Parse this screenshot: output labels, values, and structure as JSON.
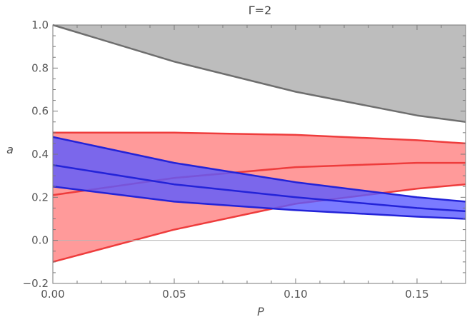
{
  "chart_data": {
    "type": "area",
    "title": "Γ=2",
    "xlabel": "P",
    "ylabel": "a",
    "xlim": [
      0,
      0.17
    ],
    "ylim": [
      -0.2,
      1.0
    ],
    "x_ticks": [
      0,
      0.05,
      0.1,
      0.15
    ],
    "x_tick_labels": [
      "0.00",
      "0.05",
      "0.10",
      "0.15"
    ],
    "y_ticks": [
      -0.2,
      0,
      0.2,
      0.4,
      0.6,
      0.8,
      1.0
    ],
    "y_tick_labels": [
      "−0.2",
      "0.0",
      "0.2",
      "0.4",
      "0.6",
      "0.8",
      "1.0"
    ],
    "grid": false,
    "series": [
      {
        "kind": "band",
        "fill": "#bdbdbd",
        "stroke": "#6e6e6e",
        "lower": {
          "x": [
            0,
            0.05,
            0.1,
            0.15,
            0.17
          ],
          "y": [
            1.0,
            0.83,
            0.69,
            0.58,
            0.55
          ]
        },
        "upper": {
          "x": [
            0,
            0.17
          ],
          "y": [
            1.0,
            1.0
          ]
        }
      },
      {
        "kind": "band",
        "fill": "#ff9a9a",
        "stroke": "#ee3c3c",
        "lower": {
          "x": [
            0,
            0.05,
            0.1,
            0.15,
            0.17
          ],
          "y": [
            -0.1,
            0.05,
            0.17,
            0.24,
            0.26
          ]
        },
        "upper": {
          "x": [
            0,
            0.05,
            0.1,
            0.15,
            0.17
          ],
          "y": [
            0.5,
            0.5,
            0.49,
            0.465,
            0.45
          ]
        },
        "mid": {
          "x": [
            0,
            0.05,
            0.1,
            0.15,
            0.17
          ],
          "y": [
            0.21,
            0.29,
            0.34,
            0.36,
            0.36
          ]
        }
      },
      {
        "kind": "band",
        "fill": "#5a5aff",
        "fill_opacity": 0.8,
        "stroke": "#2323d8",
        "lower": {
          "x": [
            0,
            0.05,
            0.1,
            0.15,
            0.17
          ],
          "y": [
            0.25,
            0.18,
            0.14,
            0.11,
            0.1
          ]
        },
        "upper": {
          "x": [
            0,
            0.05,
            0.1,
            0.15,
            0.17
          ],
          "y": [
            0.48,
            0.36,
            0.27,
            0.2,
            0.18
          ]
        },
        "mid": {
          "x": [
            0,
            0.05,
            0.1,
            0.15,
            0.17
          ],
          "y": [
            0.35,
            0.26,
            0.2,
            0.15,
            0.135
          ]
        }
      }
    ]
  }
}
